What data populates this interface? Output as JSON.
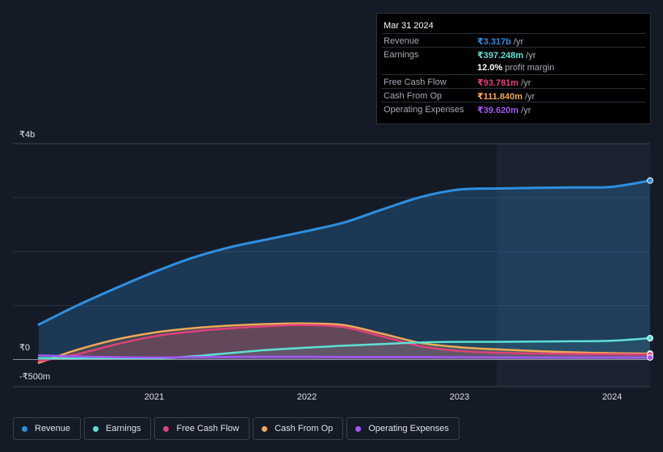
{
  "tooltip": {
    "date": "Mar 31 2024",
    "rows": [
      {
        "label": "Revenue",
        "value": "₹3.317b",
        "unit": " /yr",
        "color": "#2e8fe0"
      },
      {
        "label": "Earnings",
        "value": "₹397.248m",
        "unit": " /yr",
        "color": "#5ee0d4"
      },
      {
        "label": "",
        "value": "12.0%",
        "unit": " profit margin",
        "color": "#ffffff"
      },
      {
        "label": "Free Cash Flow",
        "value": "₹93.781m",
        "unit": " /yr",
        "color": "#e0417a"
      },
      {
        "label": "Cash From Op",
        "value": "₹111.840m",
        "unit": " /yr",
        "color": "#f0a856"
      },
      {
        "label": "Operating Expenses",
        "value": "₹39.620m",
        "unit": " /yr",
        "color": "#9e5af0"
      }
    ]
  },
  "axis": {
    "y_top_label": "₹4b",
    "y_zero_label": "₹0",
    "y_bottom_label": "-₹500m",
    "x_ticks": [
      "2021",
      "2022",
      "2023",
      "2024"
    ]
  },
  "legend": [
    {
      "label": "Revenue",
      "color": "#2e8fe0"
    },
    {
      "label": "Earnings",
      "color": "#5ee0d4"
    },
    {
      "label": "Free Cash Flow",
      "color": "#e0417a"
    },
    {
      "label": "Cash From Op",
      "color": "#f0a856"
    },
    {
      "label": "Operating Expenses",
      "color": "#9e5af0"
    }
  ],
  "chart_data": {
    "type": "area",
    "ylim": [
      -500,
      4000
    ],
    "y_unit": "₹m",
    "x": [
      "2020-03-31",
      "2020-06-30",
      "2020-09-30",
      "2020-12-31",
      "2021-03-31",
      "2021-06-30",
      "2021-09-30",
      "2021-12-31",
      "2022-03-31",
      "2022-06-30",
      "2022-09-30",
      "2022-12-31",
      "2023-03-31",
      "2023-06-30",
      "2023-09-30",
      "2023-12-31",
      "2024-03-31"
    ],
    "forecast_start": "2023-03-31",
    "series": [
      {
        "name": "Revenue",
        "color": "#2e8fe0",
        "values": [
          650,
          1000,
          1320,
          1620,
          1880,
          2080,
          2230,
          2380,
          2540,
          2780,
          3010,
          3150,
          3170,
          3180,
          3190,
          3200,
          3317
        ]
      },
      {
        "name": "Earnings",
        "color": "#5ee0d4",
        "values": [
          30,
          20,
          15,
          20,
          60,
          120,
          180,
          220,
          260,
          290,
          320,
          330,
          330,
          335,
          340,
          350,
          397
        ]
      },
      {
        "name": "Free Cash Flow",
        "color": "#e0417a",
        "values": [
          -30,
          100,
          280,
          430,
          520,
          580,
          620,
          640,
          600,
          430,
          250,
          160,
          130,
          115,
          105,
          100,
          94
        ]
      },
      {
        "name": "Cash From Op",
        "color": "#f0a856",
        "values": [
          -60,
          180,
          370,
          500,
          580,
          630,
          660,
          670,
          640,
          480,
          310,
          230,
          190,
          160,
          135,
          120,
          112
        ]
      },
      {
        "name": "Operating Expenses",
        "color": "#9e5af0",
        "values": [
          80,
          60,
          45,
          40,
          45,
          50,
          55,
          55,
          50,
          50,
          48,
          45,
          42,
          40,
          40,
          40,
          40
        ]
      }
    ]
  }
}
